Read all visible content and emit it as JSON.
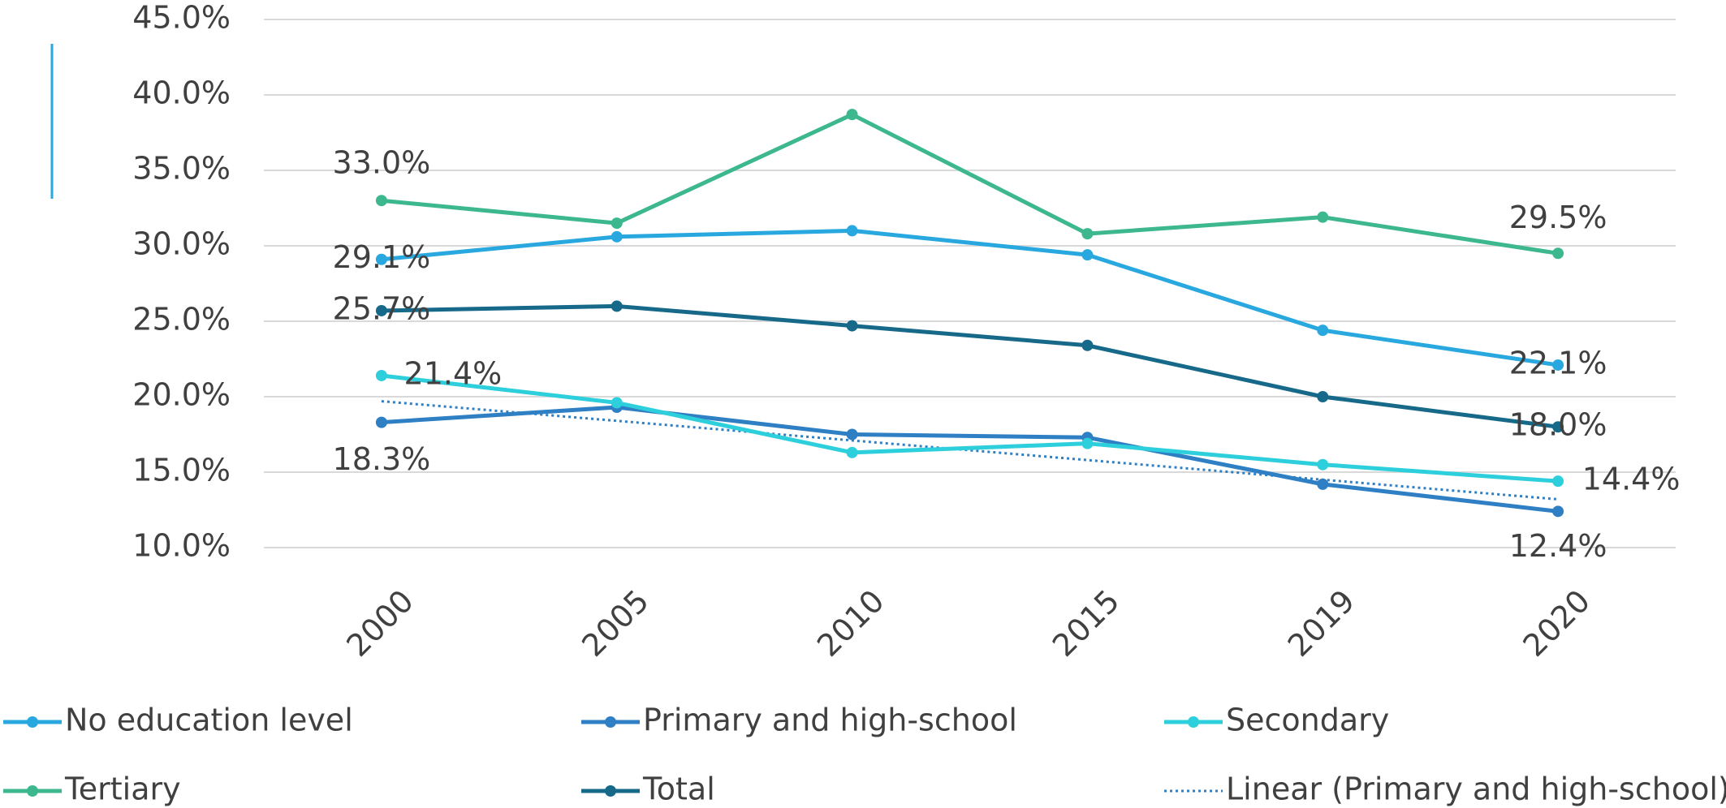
{
  "chart_data": {
    "type": "line",
    "categories": [
      "2000",
      "2005",
      "2010",
      "2015",
      "2019",
      "2020"
    ],
    "ylim": [
      10,
      45
    ],
    "yticks": [
      {
        "value": 10,
        "label": "10.0%"
      },
      {
        "value": 15,
        "label": "15.0%"
      },
      {
        "value": 20,
        "label": "20.0%"
      },
      {
        "value": 25,
        "label": "25.0%"
      },
      {
        "value": 30,
        "label": "30.0%"
      },
      {
        "value": 35,
        "label": "35.0%"
      },
      {
        "value": 40,
        "label": "40.0%"
      },
      {
        "value": 45,
        "label": "45.0%"
      }
    ],
    "grid": true,
    "legend": "bottom",
    "series": [
      {
        "name": "No education level",
        "color": "#29a8e0",
        "values": [
          29.1,
          30.6,
          31.0,
          29.4,
          24.4,
          22.1
        ],
        "value_labels": [
          "29.1%",
          null,
          null,
          null,
          null,
          "22.1%"
        ]
      },
      {
        "name": "Primary and high-school",
        "color": "#2e7fc4",
        "values": [
          18.3,
          19.3,
          17.5,
          17.3,
          14.2,
          12.4
        ],
        "value_labels": [
          "18.3%",
          null,
          null,
          null,
          null,
          "12.4%"
        ]
      },
      {
        "name": "Secondary",
        "color": "#2ecfdc",
        "values": [
          21.4,
          19.6,
          16.3,
          16.9,
          15.5,
          14.4
        ],
        "value_labels": [
          "21.4%",
          null,
          null,
          null,
          null,
          "14.4%"
        ]
      },
      {
        "name": "Tertiary",
        "color": "#3db88e",
        "values": [
          33.0,
          31.5,
          38.7,
          30.8,
          31.9,
          29.5
        ],
        "value_labels": [
          "33.0%",
          null,
          null,
          null,
          null,
          "29.5%"
        ]
      },
      {
        "name": "Total",
        "color": "#17698a",
        "values": [
          25.7,
          26.0,
          24.7,
          23.4,
          20.0,
          18.0
        ],
        "value_labels": [
          "25.7%",
          null,
          null,
          null,
          null,
          "18.0%"
        ]
      },
      {
        "name": "Linear (Primary and high-school)",
        "color": "#2e7fc4",
        "line_style": "dotted",
        "values": [
          19.7,
          18.4,
          17.1,
          15.8,
          14.5,
          13.2
        ]
      }
    ]
  }
}
